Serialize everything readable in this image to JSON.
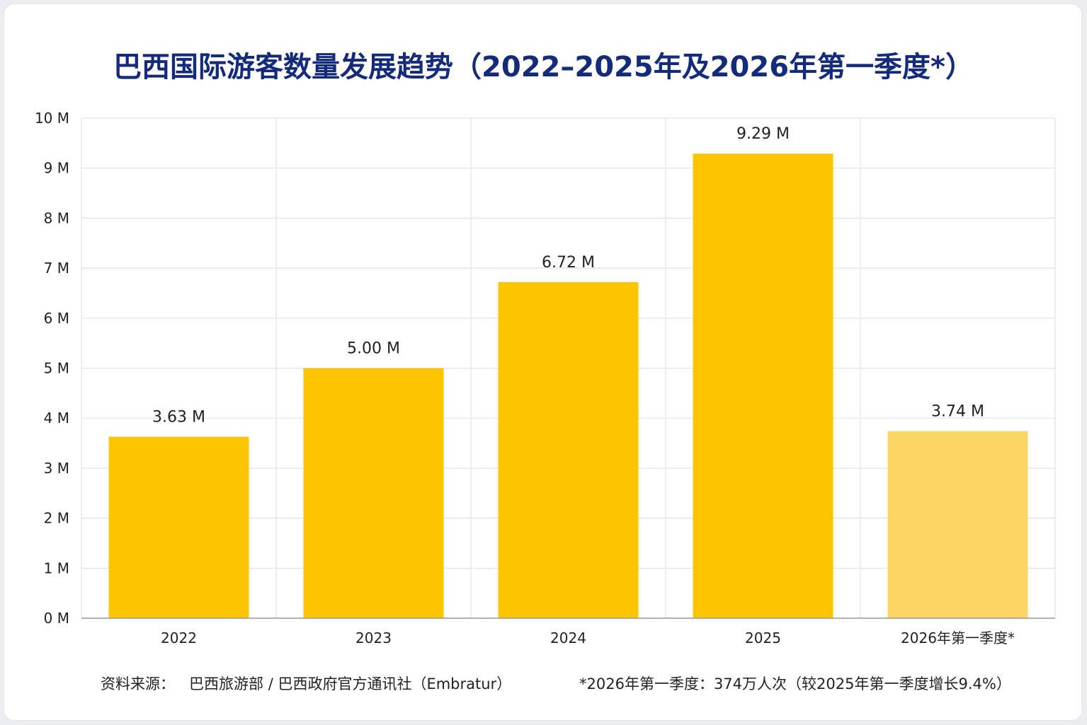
{
  "title": "巴西国际游客数量发展趋势（2022–2025年及2026年第一季度*）",
  "chart_data": {
    "type": "bar",
    "title": "巴西国际游客数量发展趋势（2022–2025年及2026年第一季度*）",
    "categories": [
      "2022",
      "2023",
      "2024",
      "2025",
      "2026年第一季度*"
    ],
    "values": [
      3.63,
      5.0,
      6.72,
      9.29,
      3.74
    ],
    "value_labels": [
      "3.63 M",
      "5.00 M",
      "6.72 M",
      "9.29 M",
      "3.74 M"
    ],
    "y_ticks": [
      "0 M",
      "1 M",
      "2 M",
      "3 M",
      "4 M",
      "5 M",
      "6 M",
      "7 M",
      "8 M",
      "9 M",
      "10 M"
    ],
    "ylim": [
      0,
      10
    ],
    "unit": "M",
    "xlabel": "",
    "ylabel": "",
    "grid": true,
    "legend": "none",
    "colors": {
      "bar": "#fdc400",
      "bar_highlight": "#fdd564",
      "grid": "#e3e3e3",
      "title": "#142a7a"
    }
  },
  "footer": {
    "source_label": "资料来源：",
    "source_text": "巴西旅游部 / 巴西政府官方通讯社（Embratur）",
    "note": "*2026年第一季度：374万人次（较2025年第一季度增长9.4%）"
  }
}
